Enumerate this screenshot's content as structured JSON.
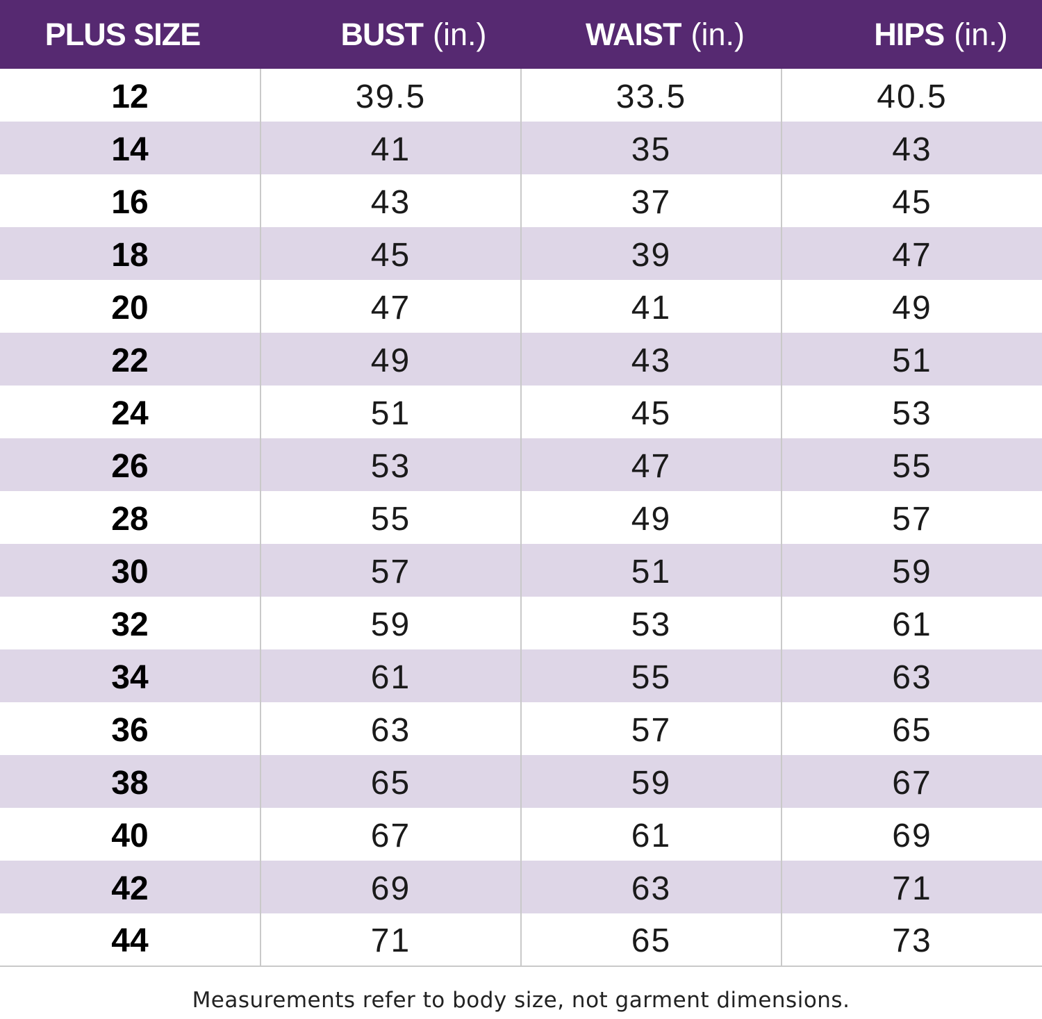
{
  "table": {
    "headers": [
      {
        "label": "PLUS SIZE",
        "unit": ""
      },
      {
        "label": "BUST",
        "unit": "(in.)"
      },
      {
        "label": "WAIST",
        "unit": "(in.)"
      },
      {
        "label": "HIPS",
        "unit": "(in.)"
      }
    ],
    "rows": [
      [
        "12",
        "39.5",
        "33.5",
        "40.5"
      ],
      [
        "14",
        "41",
        "35",
        "43"
      ],
      [
        "16",
        "43",
        "37",
        "45"
      ],
      [
        "18",
        "45",
        "39",
        "47"
      ],
      [
        "20",
        "47",
        "41",
        "49"
      ],
      [
        "22",
        "49",
        "43",
        "51"
      ],
      [
        "24",
        "51",
        "45",
        "53"
      ],
      [
        "26",
        "53",
        "47",
        "55"
      ],
      [
        "28",
        "55",
        "49",
        "57"
      ],
      [
        "30",
        "57",
        "51",
        "59"
      ],
      [
        "32",
        "59",
        "53",
        "61"
      ],
      [
        "34",
        "61",
        "55",
        "63"
      ],
      [
        "36",
        "63",
        "57",
        "65"
      ],
      [
        "38",
        "65",
        "59",
        "67"
      ],
      [
        "40",
        "67",
        "61",
        "69"
      ],
      [
        "42",
        "69",
        "63",
        "71"
      ],
      [
        "44",
        "71",
        "65",
        "73"
      ]
    ]
  },
  "footnote": "Measurements refer to body size, not garment dimensions.",
  "colors": {
    "header_bg": "#562971",
    "stripe_bg": "#ded6e7",
    "divider": "#c9c9c9"
  }
}
